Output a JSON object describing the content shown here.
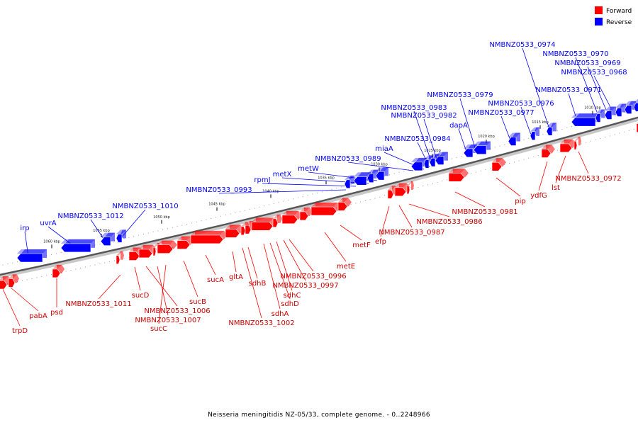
{
  "caption": "Neisseria meningitidis NZ-05/33, complete genome. - 0..2248966",
  "legend": [
    {
      "label": "Forward",
      "color": "#ff0000"
    },
    {
      "label": "Reverse",
      "color": "#0000ff"
    }
  ],
  "colors": {
    "forward": "#ff0000",
    "reverse": "#0000ff",
    "backbone": "#555555"
  },
  "ticks": [
    "1060 kbp",
    "1055 kbp",
    "1050 kbp",
    "1045 kbp",
    "1040 kbp",
    "1035 kbp",
    "1030 kbp",
    "1025 kbp",
    "1020 kbp",
    "1015 kbp",
    "1010 kbp"
  ],
  "reverse_labels": [
    "irp",
    "uvrA",
    "NMBNZ0533_1012",
    "NMBNZ0533_1010",
    "NMBNZ0533_0993",
    "rpmJ",
    "metX",
    "metW",
    "NMBNZ0533_0989",
    "miaA",
    "NMBNZ0533_0984",
    "NMBNZ0533_0983",
    "NMBNZ0533_0982",
    "dapA",
    "NMBNZ0533_0979",
    "NMBNZ0533_0977",
    "NMBNZ0533_0976",
    "NMBNZ0533_0974",
    "NMBNZ0533_0971",
    "NMBNZ0533_0970",
    "NMBNZ0533_0969",
    "NMBNZ0533_0968"
  ],
  "forward_labels": [
    "trpD",
    "pabA",
    "psd",
    "NMBNZ0533_1011",
    "sucD",
    "NMBNZ0533_1006",
    "NMBNZ0533_1007",
    "sucC",
    "sucB",
    "sucA",
    "gltA",
    "NMBNZ0533_1002",
    "sdhB",
    "sdhA",
    "sdhD",
    "sdhC",
    "NMBNZ0533_0997",
    "NMBNZ0533_0996",
    "metE",
    "metF",
    "efp",
    "NMBNZ0533_0987",
    "NMBNZ0533_0986",
    "NMBNZ0533_0981",
    "pip",
    "ydfG",
    "lst",
    "NMBNZ0533_0972"
  ]
}
